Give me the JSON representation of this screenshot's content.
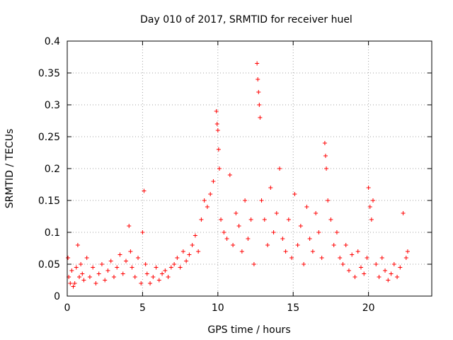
{
  "chart_data": {
    "type": "scatter",
    "title": "Day 010 of 2017, SRMTID for receiver huel",
    "xlabel": "GPS time / hours",
    "ylabel": "SRMTID / TECUs",
    "xlim": [
      0,
      24.2
    ],
    "ylim": [
      0,
      0.4
    ],
    "xticks": [
      0,
      5,
      10,
      15,
      20
    ],
    "xtick_labels": [
      "0",
      "5",
      "10",
      "15",
      "20"
    ],
    "yticks": [
      0,
      0.05,
      0.1,
      0.15,
      0.2,
      0.25,
      0.3,
      0.35,
      0.4
    ],
    "ytick_labels": [
      "0",
      "0.05",
      "0.1",
      "0.15",
      "0.2",
      "0.25",
      "0.3",
      "0.35",
      "0.4"
    ],
    "grid": true,
    "marker": "+",
    "color": "#ff0000",
    "series": [
      {
        "name": "huel",
        "x": [
          0.05,
          0.1,
          0.2,
          0.3,
          0.4,
          0.5,
          0.6,
          0.7,
          0.8,
          0.9,
          1.0,
          1.1,
          1.3,
          1.5,
          1.7,
          1.9,
          2.1,
          2.3,
          2.5,
          2.7,
          2.9,
          3.1,
          3.3,
          3.5,
          3.7,
          3.9,
          4.1,
          4.2,
          4.3,
          4.5,
          4.7,
          4.9,
          5.0,
          5.1,
          5.2,
          5.3,
          5.5,
          5.7,
          5.9,
          6.1,
          6.3,
          6.5,
          6.7,
          6.9,
          7.1,
          7.3,
          7.5,
          7.7,
          7.9,
          8.1,
          8.3,
          8.5,
          8.7,
          8.9,
          9.1,
          9.3,
          9.5,
          9.7,
          9.9,
          9.95,
          10.0,
          10.05,
          10.1,
          10.2,
          10.4,
          10.6,
          10.8,
          11.0,
          11.2,
          11.4,
          11.6,
          11.8,
          12.0,
          12.2,
          12.4,
          12.6,
          12.65,
          12.7,
          12.75,
          12.8,
          12.9,
          13.1,
          13.3,
          13.5,
          13.7,
          13.9,
          14.1,
          14.3,
          14.5,
          14.7,
          14.9,
          15.1,
          15.3,
          15.5,
          15.7,
          15.9,
          16.1,
          16.3,
          16.5,
          16.7,
          16.9,
          17.1,
          17.15,
          17.2,
          17.3,
          17.5,
          17.7,
          17.9,
          18.1,
          18.3,
          18.5,
          18.7,
          18.9,
          19.1,
          19.3,
          19.5,
          19.7,
          19.9,
          20.0,
          20.1,
          20.2,
          20.3,
          20.5,
          20.7,
          20.9,
          21.1,
          21.3,
          21.5,
          21.7,
          21.9,
          22.1,
          22.3,
          22.5,
          22.6
        ],
        "y": [
          0.06,
          0.03,
          0.02,
          0.04,
          0.015,
          0.02,
          0.045,
          0.08,
          0.03,
          0.05,
          0.035,
          0.025,
          0.06,
          0.03,
          0.045,
          0.02,
          0.035,
          0.05,
          0.025,
          0.04,
          0.055,
          0.03,
          0.045,
          0.065,
          0.035,
          0.055,
          0.11,
          0.07,
          0.045,
          0.03,
          0.06,
          0.02,
          0.1,
          0.165,
          0.05,
          0.035,
          0.02,
          0.03,
          0.045,
          0.025,
          0.035,
          0.04,
          0.03,
          0.045,
          0.05,
          0.06,
          0.045,
          0.07,
          0.055,
          0.065,
          0.08,
          0.095,
          0.07,
          0.12,
          0.15,
          0.14,
          0.16,
          0.18,
          0.29,
          0.27,
          0.26,
          0.23,
          0.2,
          0.12,
          0.1,
          0.09,
          0.19,
          0.08,
          0.13,
          0.11,
          0.07,
          0.15,
          0.09,
          0.12,
          0.05,
          0.365,
          0.34,
          0.32,
          0.3,
          0.28,
          0.15,
          0.12,
          0.08,
          0.17,
          0.1,
          0.13,
          0.2,
          0.09,
          0.07,
          0.12,
          0.06,
          0.16,
          0.08,
          0.11,
          0.05,
          0.14,
          0.09,
          0.07,
          0.13,
          0.1,
          0.06,
          0.24,
          0.22,
          0.2,
          0.15,
          0.12,
          0.08,
          0.1,
          0.06,
          0.05,
          0.08,
          0.04,
          0.065,
          0.03,
          0.07,
          0.045,
          0.035,
          0.06,
          0.17,
          0.14,
          0.12,
          0.15,
          0.05,
          0.03,
          0.06,
          0.04,
          0.025,
          0.035,
          0.05,
          0.03,
          0.045,
          0.13,
          0.06,
          0.07
        ]
      }
    ]
  }
}
